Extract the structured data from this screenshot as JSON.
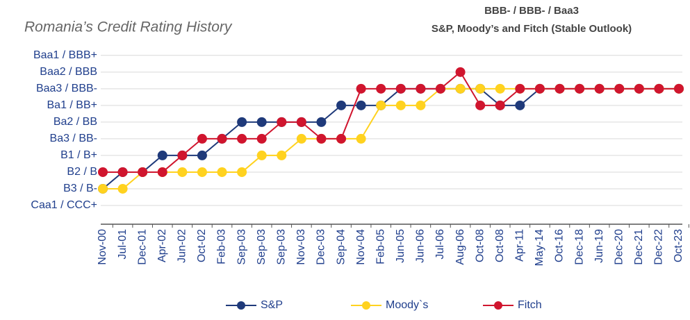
{
  "chart_data": {
    "type": "line",
    "title": "Romania’s Credit Rating History",
    "subtitle": [
      "BBB- / BBB- / Baa3",
      "S&P, Moody’s and Fitch (Stable Outlook)"
    ],
    "categories": [
      "Nov-00",
      "Jul-01",
      "Dec-01",
      "Apr-02",
      "Jun-02",
      "Oct-02",
      "Feb-03",
      "Sep-03",
      "Sep-03",
      "Sep-03",
      "Nov-03",
      "Dec-03",
      "Sep-04",
      "Nov-04",
      "Feb-05",
      "Jun-05",
      "Jun-06",
      "Jul-06",
      "Aug-06",
      "Oct-08",
      "Oct-08",
      "Apr-11",
      "May-14",
      "Oct-16",
      "Dec-18",
      "Jun-19",
      "Dec-20",
      "Dec-21",
      "Dec-22",
      "Oct-23"
    ],
    "series": [
      {
        "name": "S&P",
        "color": "#1f3a7a",
        "values": [
          2,
          3,
          3,
          4,
          4,
          4,
          5,
          6,
          6,
          6,
          6,
          6,
          7,
          7,
          7,
          8,
          8,
          8,
          8,
          8,
          7,
          7,
          8,
          8,
          8,
          8,
          8,
          8,
          8,
          8
        ]
      },
      {
        "name": "Moody`s",
        "color": "#ffd21f",
        "values": [
          2,
          2,
          3,
          3,
          3,
          3,
          3,
          3,
          4,
          4,
          5,
          5,
          5,
          5,
          7,
          7,
          7,
          8,
          8,
          8,
          8,
          8,
          8,
          8,
          8,
          8,
          8,
          8,
          8,
          8
        ]
      },
      {
        "name": "Fitch",
        "color": "#d0152e",
        "values": [
          3,
          3,
          3,
          3,
          4,
          5,
          5,
          5,
          5,
          6,
          6,
          5,
          5,
          8,
          8,
          8,
          8,
          8,
          9,
          7,
          7,
          8,
          8,
          8,
          8,
          8,
          8,
          8,
          8,
          8
        ]
      }
    ],
    "ylim": [
      0,
      10.2
    ],
    "yticks": [
      {
        "value": 1,
        "label": "Caa1 / CCC+"
      },
      {
        "value": 2,
        "label": "B3 / B-"
      },
      {
        "value": 3,
        "label": "B2 / B"
      },
      {
        "value": 4,
        "label": "B1 / B+"
      },
      {
        "value": 5,
        "label": "Ba3 / BB-"
      },
      {
        "value": 6,
        "label": "Ba2 / BB"
      },
      {
        "value": 7,
        "label": "Ba1 / BB+"
      },
      {
        "value": 8,
        "label": "Baa3 / BBB-"
      },
      {
        "value": 9,
        "label": "Baa2 / BBB"
      },
      {
        "value": 10,
        "label": "Baa1 / BBB+"
      }
    ],
    "grid": true,
    "legend": "bottom"
  }
}
